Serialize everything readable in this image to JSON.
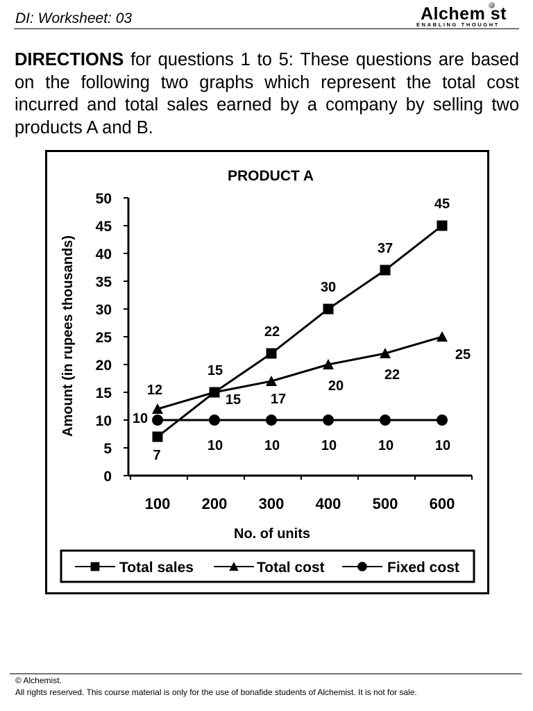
{
  "header": {
    "title": "DI: Worksheet: 03",
    "logo_word": "Alchem st",
    "logo_tagline": "ENABLING THOUGHT"
  },
  "directions": {
    "lead": "DIRECTIONS",
    "text": " for questions 1 to 5: These questions are based on the following two graphs which represent the total cost incurred and total sales earned by a company by selling two products A and B."
  },
  "chart_data": {
    "type": "line",
    "title": "PRODUCT    A",
    "xlabel": "No. of units",
    "ylabel": "Amount (in rupees thousands)",
    "categories": [
      "100",
      "200",
      "300",
      "400",
      "500",
      "600"
    ],
    "ylim": [
      0,
      50
    ],
    "yticks": [
      "0",
      "5",
      "10",
      "15",
      "20",
      "25",
      "30",
      "35",
      "40",
      "45",
      "50"
    ],
    "grid": false,
    "legend_position": "bottom",
    "series": [
      {
        "name": "Total sales",
        "marker": "square",
        "values": [
          7,
          15,
          22,
          30,
          37,
          45
        ]
      },
      {
        "name": "Total cost",
        "marker": "triangle",
        "values": [
          12,
          15,
          17,
          20,
          22,
          25
        ]
      },
      {
        "name": "Fixed cost",
        "marker": "circle",
        "values": [
          10,
          10,
          10,
          10,
          10,
          10
        ]
      }
    ]
  },
  "footer": {
    "copyright": "© Alchemist.",
    "rights": "All rights reserved. This course material is only for the use of bonafide students of Alchemist. It is not for sale."
  }
}
